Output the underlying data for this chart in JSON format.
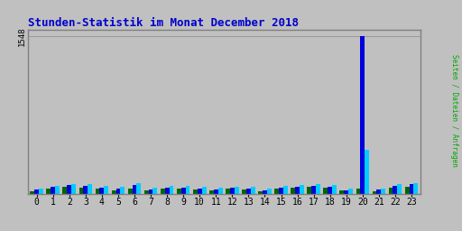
{
  "title": "Stunden-Statistik im Monat December 2018",
  "title_color": "#0000cc",
  "title_fontsize": 9,
  "hours": [
    0,
    1,
    2,
    3,
    4,
    5,
    6,
    7,
    8,
    9,
    10,
    11,
    12,
    13,
    14,
    15,
    16,
    17,
    18,
    19,
    20,
    21,
    22,
    23
  ],
  "seiten": [
    30,
    55,
    70,
    65,
    50,
    40,
    55,
    35,
    55,
    55,
    45,
    35,
    50,
    45,
    30,
    55,
    65,
    70,
    60,
    35,
    55,
    30,
    65,
    75
  ],
  "dateien": [
    45,
    70,
    90,
    80,
    65,
    55,
    90,
    45,
    65,
    65,
    55,
    45,
    60,
    55,
    40,
    65,
    75,
    80,
    75,
    40,
    1548,
    45,
    80,
    95
  ],
  "anfragen": [
    55,
    80,
    100,
    95,
    80,
    70,
    105,
    60,
    80,
    80,
    70,
    60,
    75,
    70,
    55,
    80,
    90,
    95,
    90,
    55,
    430,
    55,
    95,
    110
  ],
  "ylabel": "Seiten / Dateien / Anfragen",
  "ylabel_color": "#00aa00",
  "background_color": "#c0c0c0",
  "plot_bg_color": "#c0c0c0",
  "bar_color_seiten": "#006600",
  "bar_color_dateien": "#0000dd",
  "bar_color_anfragen": "#00ccff",
  "grid_color": "#999999",
  "ytick_val": 1548,
  "border_color": "#808080"
}
